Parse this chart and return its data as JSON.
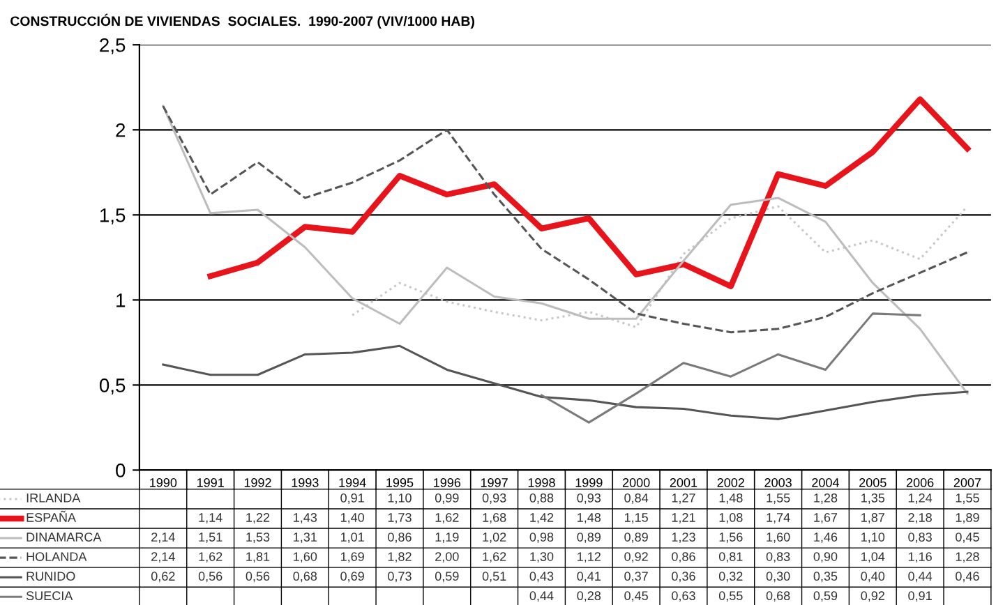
{
  "chart_data": {
    "type": "line",
    "title": "CONSTRUCCIÓN DE VIVIENDAS  SOCIALES.  1990-2007 (VIV/1000 HAB)",
    "categories": [
      "1990",
      "1991",
      "1992",
      "1993",
      "1994",
      "1995",
      "1996",
      "1997",
      "1998",
      "1999",
      "2000",
      "2001",
      "2002",
      "2003",
      "2004",
      "2005",
      "2006",
      "2007"
    ],
    "series": [
      {
        "name": "IRLANDA",
        "color": "#c8c8c8",
        "line_style": "dotted",
        "values": [
          null,
          null,
          null,
          null,
          0.91,
          1.1,
          0.99,
          0.93,
          0.88,
          0.93,
          0.84,
          1.27,
          1.48,
          1.55,
          1.28,
          1.35,
          1.24,
          1.55
        ],
        "value_labels": [
          null,
          null,
          null,
          null,
          "0,91",
          "1,10",
          "0,99",
          "0,93",
          "0,88",
          "0,93",
          "0,84",
          "1,27",
          "1,48",
          "1,55",
          "1,28",
          "1,35",
          "1,24",
          "1,55"
        ]
      },
      {
        "name": "ESPAÑA",
        "color": "#e8141c",
        "line_style": "solid",
        "values": [
          null,
          1.14,
          1.22,
          1.43,
          1.4,
          1.73,
          1.62,
          1.68,
          1.42,
          1.48,
          1.15,
          1.21,
          1.08,
          1.74,
          1.67,
          1.87,
          2.18,
          1.89
        ],
        "value_labels": [
          null,
          "1,14",
          "1,22",
          "1,43",
          "1,40",
          "1,73",
          "1,62",
          "1,68",
          "1,42",
          "1,48",
          "1,15",
          "1,21",
          "1,08",
          "1,74",
          "1,67",
          "1,87",
          "2,18",
          "1,89"
        ]
      },
      {
        "name": "DINAMARCA",
        "color": "#bdbdbd",
        "line_style": "solid",
        "values": [
          2.14,
          1.51,
          1.53,
          1.31,
          1.01,
          0.86,
          1.19,
          1.02,
          0.98,
          0.89,
          0.89,
          1.23,
          1.56,
          1.6,
          1.46,
          1.1,
          0.83,
          0.45
        ],
        "value_labels": [
          "2,14",
          "1,51",
          "1,53",
          "1,31",
          "1,01",
          "0,86",
          "1,19",
          "1,02",
          "0,98",
          "0,89",
          "0,89",
          "1,23",
          "1,56",
          "1,60",
          "1,46",
          "1,10",
          "0,83",
          "0,45"
        ]
      },
      {
        "name": "HOLANDA",
        "color": "#555555",
        "line_style": "dashed",
        "values": [
          2.14,
          1.62,
          1.81,
          1.6,
          1.69,
          1.82,
          2.0,
          1.62,
          1.3,
          1.12,
          0.92,
          0.86,
          0.81,
          0.83,
          0.9,
          1.04,
          1.16,
          1.28
        ],
        "value_labels": [
          "2,14",
          "1,62",
          "1,81",
          "1,60",
          "1,69",
          "1,82",
          "2,00",
          "1,62",
          "1,30",
          "1,12",
          "0,92",
          "0,86",
          "0,81",
          "0,83",
          "0,90",
          "1,04",
          "1,16",
          "1,28"
        ]
      },
      {
        "name": "RUNIDO",
        "color": "#555555",
        "line_style": "solid",
        "values": [
          0.62,
          0.56,
          0.56,
          0.68,
          0.69,
          0.73,
          0.59,
          0.51,
          0.43,
          0.41,
          0.37,
          0.36,
          0.32,
          0.3,
          0.35,
          0.4,
          0.44,
          0.46
        ],
        "value_labels": [
          "0,62",
          "0,56",
          "0,56",
          "0,68",
          "0,69",
          "0,73",
          "0,59",
          "0,51",
          "0,43",
          "0,41",
          "0,37",
          "0,36",
          "0,32",
          "0,30",
          "0,35",
          "0,40",
          "0,44",
          "0,46"
        ]
      },
      {
        "name": "SUECIA",
        "color": "#7a7a7a",
        "line_style": "solid",
        "values": [
          null,
          null,
          null,
          null,
          null,
          null,
          null,
          null,
          0.44,
          0.28,
          0.45,
          0.63,
          0.55,
          0.68,
          0.59,
          0.92,
          0.91,
          null
        ],
        "value_labels": [
          null,
          null,
          null,
          null,
          null,
          null,
          null,
          null,
          "0,44",
          "0,28",
          "0,45",
          "0,63",
          "0,55",
          "0,68",
          "0,59",
          "0,92",
          "0,91",
          null
        ]
      }
    ],
    "ylim": [
      0,
      2.5
    ],
    "yticks": [
      0,
      {
        "value": 0.5,
        "label": "0,5"
      },
      1,
      {
        "value": 1.5,
        "label": "1,5"
      },
      2,
      {
        "value": 2.5,
        "label": "2,5"
      }
    ],
    "grid": "y",
    "marker": "none",
    "legend": "bottom"
  }
}
